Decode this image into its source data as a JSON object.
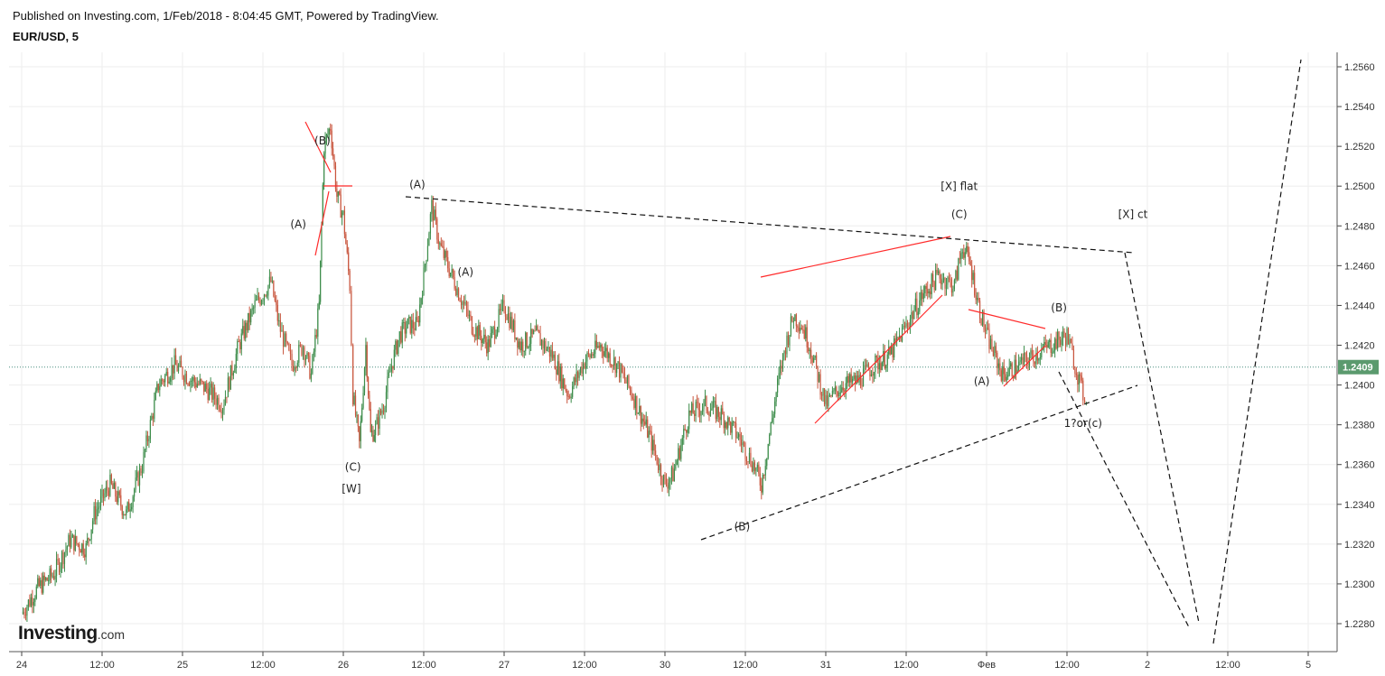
{
  "header": {
    "published": "Published on Investing.com, 1/Feb/2018 - 8:04:45 GMT, Powered by TradingView.",
    "symbol": "EUR/USD, 5"
  },
  "logo": {
    "main": "Investing",
    "suffix": ".com"
  },
  "colors": {
    "up": "#3c8c4a",
    "down": "#c8553d",
    "annotation_red": "#ff2a2a",
    "dashed": "#111111",
    "current_price_bg": "#5b9a6e",
    "grid": "#eeeeee"
  },
  "chart_data": {
    "type": "line",
    "title": "EUR/USD, 5",
    "xlabel": "",
    "ylabel": "",
    "ylim": [
      1.227,
      1.2565
    ],
    "grid": true,
    "y_ticks": [
      "1.2560",
      "1.2540",
      "1.2520",
      "1.2500",
      "1.2480",
      "1.2460",
      "1.2440",
      "1.2420",
      "1.2400",
      "1.2380",
      "1.2360",
      "1.2340",
      "1.2320",
      "1.2300",
      "1.2280"
    ],
    "x_ticks": [
      {
        "label": "24",
        "t": 0
      },
      {
        "label": "12:00",
        "t": 0.5
      },
      {
        "label": "25",
        "t": 1
      },
      {
        "label": "12:00",
        "t": 1.5
      },
      {
        "label": "26",
        "t": 2
      },
      {
        "label": "12:00",
        "t": 2.5
      },
      {
        "label": "27",
        "t": 3
      },
      {
        "label": "12:00",
        "t": 3.5
      },
      {
        "label": "30",
        "t": 4
      },
      {
        "label": "12:00",
        "t": 4.5
      },
      {
        "label": "31",
        "t": 5
      },
      {
        "label": "12:00",
        "t": 5.5
      },
      {
        "label": "Фев",
        "t": 6
      },
      {
        "label": "12:00",
        "t": 6.5
      },
      {
        "label": "2",
        "t": 7
      },
      {
        "label": "12:00",
        "t": 7.5
      },
      {
        "label": "5",
        "t": 8
      }
    ],
    "current_price": {
      "value": 1.2409,
      "label": "1.2409"
    },
    "series": [
      {
        "values": [
          [
            0.0,
            1.2285
          ],
          [
            0.1,
            1.2298
          ],
          [
            0.2,
            1.2305
          ],
          [
            0.3,
            1.2322
          ],
          [
            0.4,
            1.2318
          ],
          [
            0.45,
            1.2335
          ],
          [
            0.55,
            1.235
          ],
          [
            0.65,
            1.2335
          ],
          [
            0.75,
            1.236
          ],
          [
            0.85,
            1.24
          ],
          [
            0.95,
            1.241
          ],
          [
            1.05,
            1.2403
          ],
          [
            1.15,
            1.2398
          ],
          [
            1.25,
            1.239
          ],
          [
            1.35,
            1.242
          ],
          [
            1.45,
            1.244
          ],
          [
            1.55,
            1.2452
          ],
          [
            1.6,
            1.243
          ],
          [
            1.68,
            1.241
          ],
          [
            1.75,
            1.242
          ],
          [
            1.8,
            1.2405
          ],
          [
            1.85,
            1.244
          ],
          [
            1.88,
            1.252
          ],
          [
            1.92,
            1.253
          ],
          [
            1.96,
            1.2495
          ],
          [
            2.0,
            1.2485
          ],
          [
            2.04,
            1.245
          ],
          [
            2.06,
            1.2395
          ],
          [
            2.1,
            1.237
          ],
          [
            2.14,
            1.242
          ],
          [
            2.17,
            1.2375
          ],
          [
            2.2,
            1.2378
          ],
          [
            2.25,
            1.239
          ],
          [
            2.3,
            1.241
          ],
          [
            2.35,
            1.2425
          ],
          [
            2.4,
            1.243
          ],
          [
            2.46,
            1.243
          ],
          [
            2.5,
            1.2455
          ],
          [
            2.55,
            1.249
          ],
          [
            2.6,
            1.247
          ],
          [
            2.65,
            1.246
          ],
          [
            2.7,
            1.245
          ],
          [
            2.8,
            1.243
          ],
          [
            2.9,
            1.242
          ],
          [
            3.0,
            1.244
          ],
          [
            3.1,
            1.242
          ],
          [
            3.2,
            1.2425
          ],
          [
            3.3,
            1.2415
          ],
          [
            3.4,
            1.2395
          ],
          [
            3.5,
            1.2412
          ],
          [
            3.6,
            1.242
          ],
          [
            3.7,
            1.241
          ],
          [
            3.8,
            1.2395
          ],
          [
            3.9,
            1.2375
          ],
          [
            4.0,
            1.235
          ],
          [
            4.05,
            1.2355
          ],
          [
            4.15,
            1.2385
          ],
          [
            4.25,
            1.239
          ],
          [
            4.35,
            1.2385
          ],
          [
            4.45,
            1.2375
          ],
          [
            4.55,
            1.236
          ],
          [
            4.6,
            1.235
          ],
          [
            4.65,
            1.2375
          ],
          [
            4.7,
            1.24
          ],
          [
            4.75,
            1.242
          ],
          [
            4.8,
            1.2435
          ],
          [
            4.85,
            1.243
          ],
          [
            4.9,
            1.242
          ],
          [
            5.0,
            1.239
          ],
          [
            5.1,
            1.24
          ],
          [
            5.2,
            1.2402
          ],
          [
            5.3,
            1.241
          ],
          [
            5.4,
            1.2415
          ],
          [
            5.5,
            1.243
          ],
          [
            5.6,
            1.2445
          ],
          [
            5.7,
            1.2455
          ],
          [
            5.8,
            1.245
          ],
          [
            5.85,
            1.247
          ],
          [
            5.9,
            1.246
          ],
          [
            5.95,
            1.244
          ],
          [
            6.0,
            1.2425
          ],
          [
            6.1,
            1.2405
          ],
          [
            6.2,
            1.241
          ],
          [
            6.3,
            1.2415
          ],
          [
            6.4,
            1.242
          ],
          [
            6.5,
            1.2425
          ],
          [
            6.55,
            1.241
          ],
          [
            6.6,
            1.2395
          ],
          [
            6.62,
            1.2395
          ]
        ]
      }
    ],
    "annotations": [
      {
        "text": "(B)",
        "t": 1.87,
        "y": 1.2521
      },
      {
        "text": "(A)",
        "t": 1.72,
        "y": 1.2479
      },
      {
        "text": "(A)",
        "t": 2.46,
        "y": 1.2499
      },
      {
        "text": "(A)",
        "t": 2.76,
        "y": 1.2455
      },
      {
        "text": "(C)",
        "t": 2.06,
        "y": 1.2357
      },
      {
        "text": "[W]",
        "t": 2.05,
        "y": 1.2346
      },
      {
        "text": "(B)",
        "t": 4.48,
        "y": 1.2327
      },
      {
        "text": "[X] flat",
        "t": 5.83,
        "y": 1.2498
      },
      {
        "text": "(C)",
        "t": 5.83,
        "y": 1.2484
      },
      {
        "text": "[X] ct",
        "t": 6.91,
        "y": 1.2484
      },
      {
        "text": "(B)",
        "t": 6.45,
        "y": 1.2437
      },
      {
        "text": "(A)",
        "t": 5.97,
        "y": 1.24
      },
      {
        "text": "1?or(c)",
        "t": 6.6,
        "y": 1.2379
      }
    ]
  }
}
